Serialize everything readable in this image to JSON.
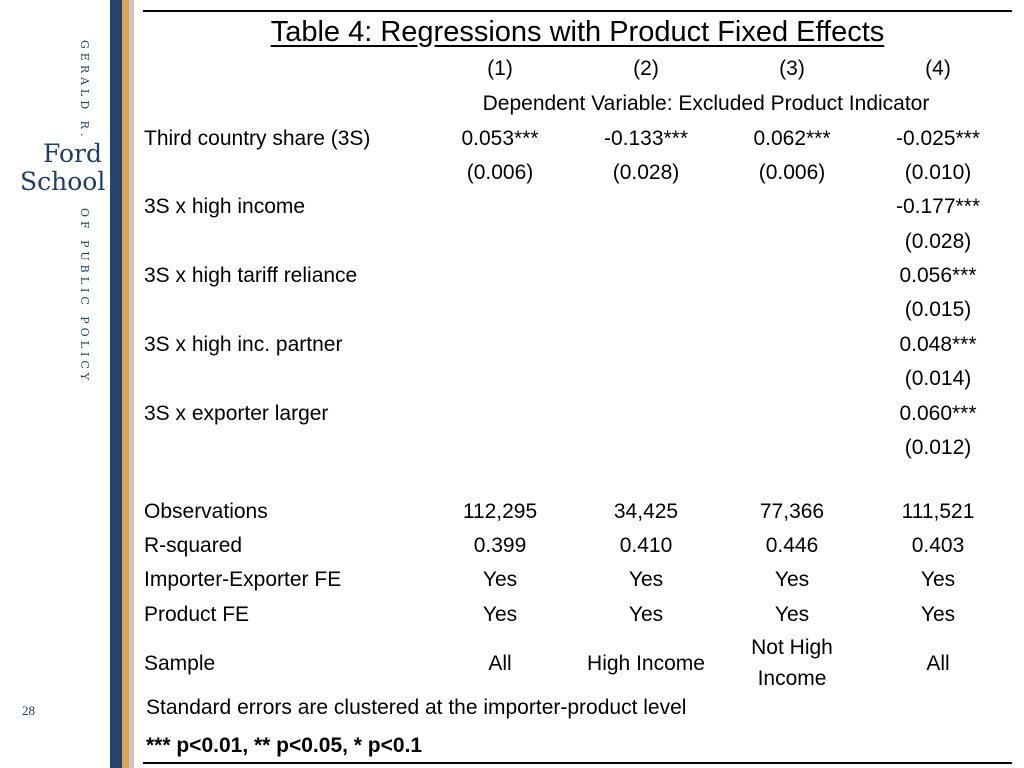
{
  "brand": {
    "vertical_top": "GERALD R.",
    "name_line1": "Ford",
    "name_line2": "School",
    "vertical_bottom": "OF PUBLIC POLICY",
    "colors": {
      "navy": "#23456b",
      "gold": "#d9a64f",
      "text_navy": "#1e3f66"
    }
  },
  "slide": {
    "page_number": "28",
    "title": "Table 4:   Regressions with Product Fixed Effects"
  },
  "table": {
    "column_headers": [
      "(1)",
      "(2)",
      "(3)",
      "(4)"
    ],
    "dependent_variable": "Dependent Variable: Excluded Product Indicator",
    "rows": [
      {
        "label": "Third country share (3S)",
        "values": [
          "0.053***",
          "-0.133***",
          "0.062***",
          "-0.025***"
        ]
      },
      {
        "label": "",
        "values": [
          "(0.006)",
          "(0.028)",
          "(0.006)",
          "(0.010)"
        ]
      },
      {
        "label": "3S x high income",
        "values": [
          "",
          "",
          "",
          "-0.177***"
        ]
      },
      {
        "label": "",
        "values": [
          "",
          "",
          "",
          "(0.028)"
        ]
      },
      {
        "label": "3S x high tariff reliance",
        "values": [
          "",
          "",
          "",
          "0.056***"
        ]
      },
      {
        "label": "",
        "values": [
          "",
          "",
          "",
          "(0.015)"
        ]
      },
      {
        "label": "3S x high inc. partner",
        "values": [
          "",
          "",
          "",
          "0.048***"
        ]
      },
      {
        "label": "",
        "values": [
          "",
          "",
          "",
          "(0.014)"
        ]
      },
      {
        "label": "3S x exporter larger",
        "values": [
          "",
          "",
          "",
          "0.060***"
        ]
      },
      {
        "label": "",
        "values": [
          "",
          "",
          "",
          "(0.012)"
        ]
      }
    ],
    "stats": [
      {
        "label": "Observations",
        "values": [
          "112,295",
          "34,425",
          "77,366",
          "111,521"
        ]
      },
      {
        "label": "R-squared",
        "values": [
          "0.399",
          "0.410",
          "0.446",
          "0.403"
        ]
      },
      {
        "label": "Importer-Exporter FE",
        "values": [
          "Yes",
          "Yes",
          "Yes",
          "Yes"
        ]
      },
      {
        "label": "Product FE",
        "values": [
          "Yes",
          "Yes",
          "Yes",
          "Yes"
        ]
      },
      {
        "label": "Sample",
        "values": [
          "All",
          "High Income",
          "Not High Income",
          "All"
        ]
      }
    ],
    "notes": [
      "Standard errors are clustered at the importer-product level",
      "*** p<0.01, ** p<0.05, * p<0.1"
    ]
  }
}
